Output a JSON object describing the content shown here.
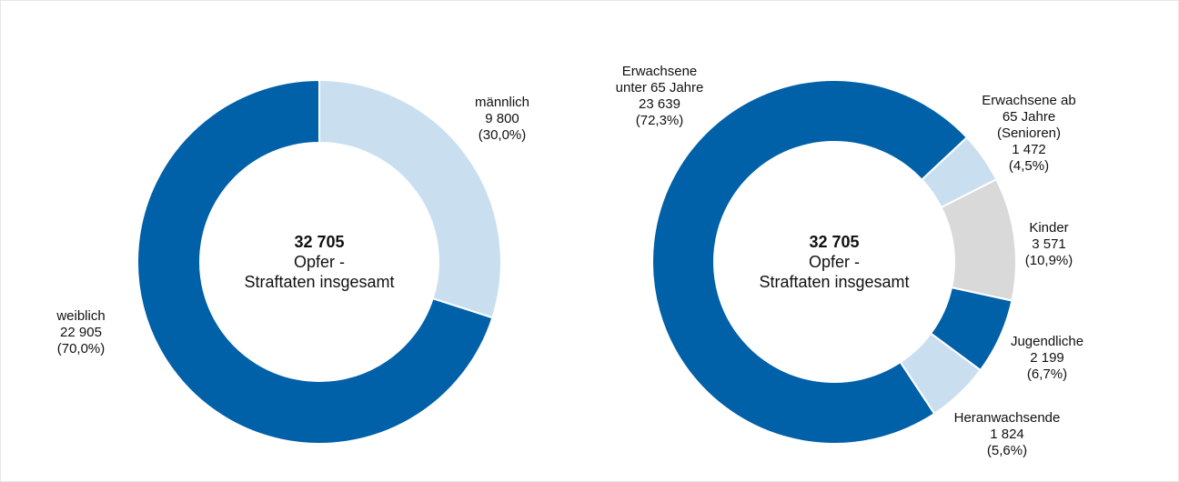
{
  "chart_data": [
    {
      "type": "donut",
      "center_label": "32 705",
      "center_text": "Opfer -\nStraftaten insgesamt",
      "categories": [
        "männlich",
        "weiblich"
      ],
      "values": [
        9800,
        22905
      ],
      "value_labels": [
        "9 800",
        "22 905"
      ],
      "percent_labels": [
        "(30,0%)",
        "(70,0%)"
      ],
      "colors": [
        "#c9dff0",
        "#0060a8"
      ]
    },
    {
      "type": "donut",
      "center_label": "32 705",
      "center_text": "Opfer -\nStraftaten insgesamt",
      "categories": [
        "Erwachsene ab\n65 Jahre\n(Senioren)",
        "Kinder",
        "Jugendliche",
        "Heranwachsende",
        "Erwachsene\nunter 65 Jahre"
      ],
      "values": [
        1472,
        3571,
        2199,
        1824,
        23639
      ],
      "value_labels": [
        "1 472",
        "3 571",
        "2 199",
        "1 824",
        "23 639"
      ],
      "percent_labels": [
        "(4,5%)",
        "(10,9%)",
        "(6,7%)",
        "(5,6%)",
        "(72,3%)"
      ],
      "colors": [
        "#c9dff0",
        "#d9d9d9",
        "#0060a8",
        "#c9dff0",
        "#0060a8"
      ]
    }
  ]
}
